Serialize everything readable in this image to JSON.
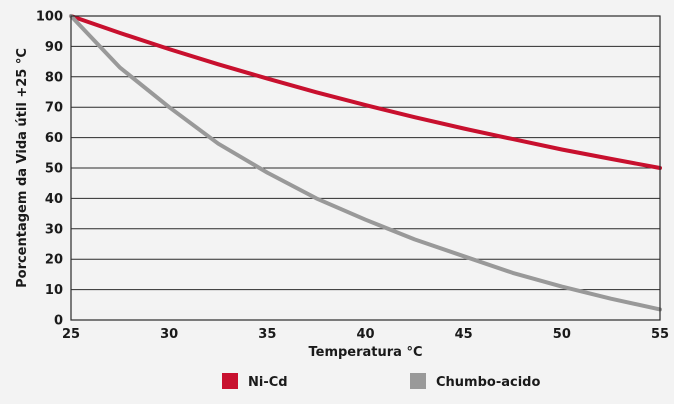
{
  "chart_data": {
    "type": "line",
    "xlabel": "Temperatura °C",
    "ylabel": "Porcentagem da Vida útil +25 °C",
    "xlim": [
      25,
      55
    ],
    "ylim": [
      0,
      100
    ],
    "x_ticks": [
      25,
      30,
      35,
      40,
      45,
      50,
      55
    ],
    "y_ticks": [
      0,
      10,
      20,
      30,
      40,
      50,
      60,
      70,
      80,
      90,
      100
    ],
    "grid": "horizontal",
    "legend_position": "bottom",
    "series": [
      {
        "name": "Ni-Cd",
        "color": "#c8102e",
        "x": [
          25,
          27.5,
          30,
          32.5,
          35,
          37.5,
          40,
          42.5,
          45,
          47.5,
          50,
          52.5,
          55
        ],
        "y": [
          100,
          94.4,
          89.1,
          84.1,
          79.4,
          74.9,
          70.7,
          66.7,
          63.0,
          59.5,
          56.1,
          53.0,
          50
        ]
      },
      {
        "name": "Chumbo-acido",
        "color": "#999999",
        "x": [
          25,
          27.5,
          30,
          32.5,
          35,
          37.5,
          40,
          42.5,
          45,
          47.5,
          50,
          52.5,
          55
        ],
        "y": [
          100,
          83,
          70,
          58,
          48.5,
          40,
          33,
          26.5,
          21,
          15.5,
          11,
          7,
          3.5
        ]
      }
    ]
  }
}
